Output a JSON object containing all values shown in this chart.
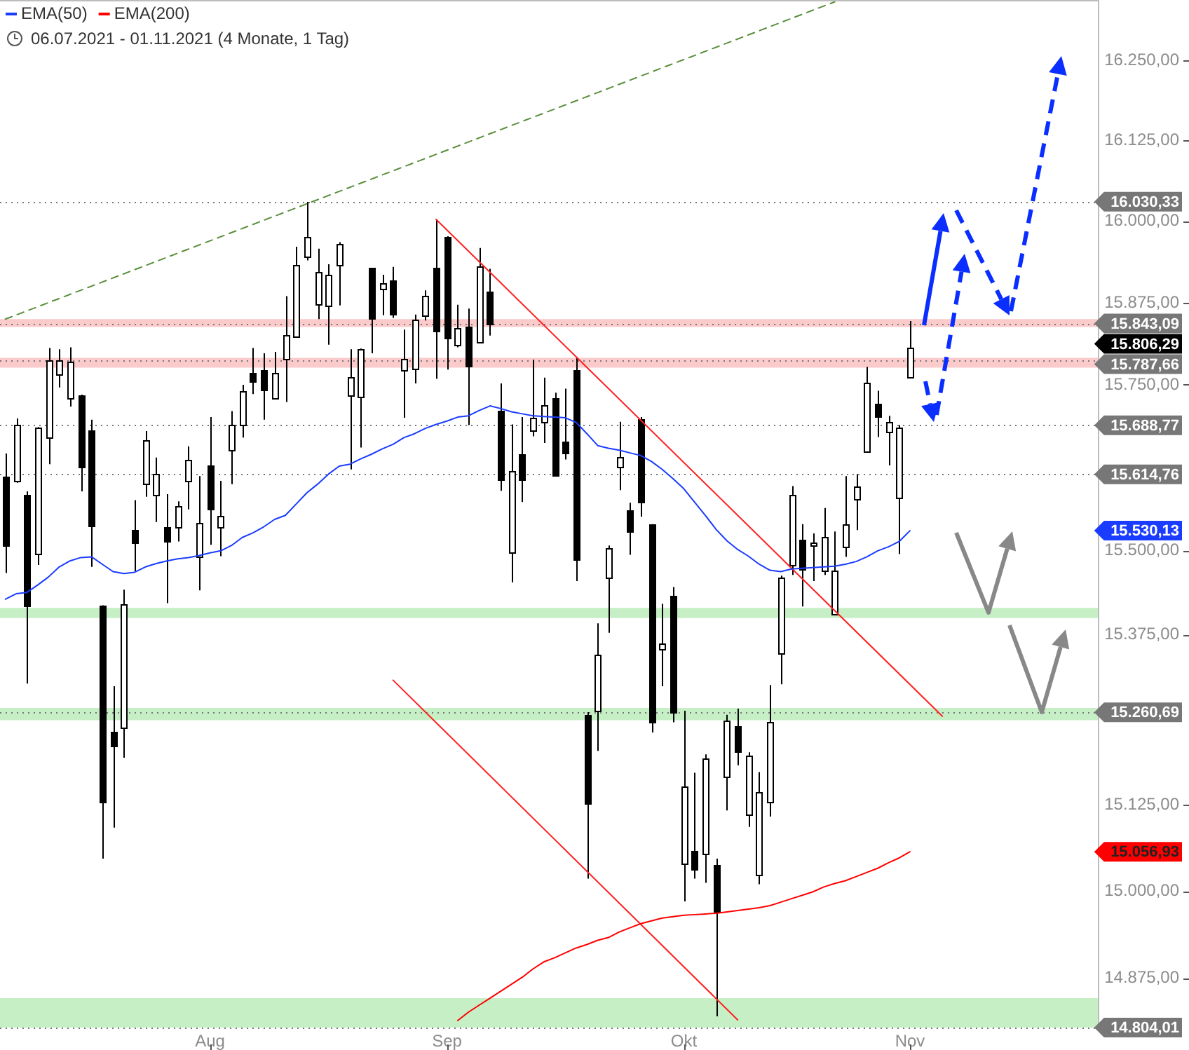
{
  "chart_data": {
    "type": "candlestick",
    "subtitle": "06.07.2021 - 01.11.2021 (4 Monate, 1 Tag)",
    "categories": [
      null,
      null,
      null,
      null,
      null,
      null,
      null,
      null,
      null,
      null,
      null,
      null,
      null,
      null,
      null,
      null,
      null,
      null,
      null,
      "Aug",
      null,
      null,
      null,
      null,
      null,
      null,
      null,
      null,
      null,
      null,
      null,
      null,
      null,
      null,
      null,
      null,
      null,
      null,
      null,
      null,
      null,
      "Sep",
      null,
      null,
      null,
      null,
      null,
      null,
      null,
      null,
      null,
      null,
      null,
      null,
      null,
      null,
      null,
      null,
      null,
      null,
      null,
      null,
      null,
      "Okt",
      null,
      null,
      null,
      null,
      null,
      null,
      null,
      null,
      null,
      null,
      null,
      null,
      null,
      null,
      null,
      null,
      null,
      null,
      null,
      null,
      "Nov",
      null,
      null,
      null,
      null,
      null,
      null,
      null,
      null,
      null,
      null,
      null,
      null,
      null,
      null,
      null,
      null,
      null
    ],
    "series": [
      {
        "color": "#000000",
        "ohlc": [
          [
            15612,
            15646,
            15467,
            15508
          ],
          [
            15605,
            15699,
            15602,
            15690
          ],
          [
            15583,
            15589,
            15303,
            15418
          ],
          [
            15497,
            15686,
            15479,
            15686
          ],
          [
            15672,
            15806,
            15630,
            15788
          ],
          [
            15767,
            15804,
            15746,
            15788
          ],
          [
            15730,
            15807,
            15717,
            15786
          ],
          [
            15735,
            15735,
            15589,
            15627
          ],
          [
            15680,
            15697,
            15476,
            15536
          ],
          [
            15419,
            15419,
            15047,
            15130
          ],
          [
            15233,
            15299,
            15092,
            15213
          ],
          [
            15238,
            15442,
            15194,
            15420
          ],
          [
            15531,
            15576,
            15469,
            15512
          ],
          [
            15601,
            15680,
            15581,
            15667
          ],
          [
            15584,
            15640,
            15543,
            15616
          ],
          [
            15536,
            15585,
            15422,
            15516
          ],
          [
            15536,
            15574,
            15514,
            15567
          ],
          [
            15605,
            15657,
            15562,
            15637
          ],
          [
            15492,
            15612,
            15441,
            15542
          ],
          [
            15629,
            15701,
            15509,
            15564
          ],
          [
            15536,
            15605,
            15492,
            15553
          ],
          [
            15651,
            15710,
            15600,
            15690
          ],
          [
            15690,
            15750,
            15670,
            15741
          ],
          [
            15769,
            15806,
            15736,
            15757
          ],
          [
            15772,
            15798,
            15697,
            15743
          ],
          [
            15730,
            15800,
            15730,
            15769
          ],
          [
            15789,
            15885,
            15724,
            15825
          ],
          [
            15825,
            15961,
            15822,
            15934
          ],
          [
            15945,
            16030,
            15940,
            15975
          ],
          [
            15874,
            15958,
            15850,
            15923
          ],
          [
            15870,
            15934,
            15811,
            15918
          ],
          [
            15932,
            15968,
            15871,
            15965
          ],
          [
            15735,
            15804,
            15622,
            15762
          ],
          [
            15732,
            15805,
            15655,
            15805
          ],
          [
            15928,
            15928,
            15798,
            15850
          ],
          [
            15895,
            15918,
            15856,
            15904
          ],
          [
            15910,
            15930,
            15852,
            15859
          ],
          [
            15771,
            15834,
            15700,
            15789
          ],
          [
            15775,
            15857,
            15752,
            15850
          ],
          [
            15855,
            15894,
            15848,
            15885
          ],
          [
            15928,
            16003,
            15759,
            15832
          ],
          [
            15977,
            15977,
            15773,
            15822
          ],
          [
            15811,
            15872,
            15807,
            15837
          ],
          [
            15839,
            15866,
            15689,
            15779
          ],
          [
            15814,
            15959,
            15814,
            15930
          ],
          [
            15893,
            15927,
            15825,
            15843
          ],
          [
            15711,
            15752,
            15590,
            15608
          ],
          [
            15497,
            15690,
            15453,
            15619
          ],
          [
            15646,
            15701,
            15573,
            15608
          ],
          [
            15680,
            15788,
            15672,
            15699
          ],
          [
            15694,
            15761,
            15662,
            15720
          ],
          [
            15729,
            15738,
            15612,
            15612
          ],
          [
            15665,
            15744,
            15637,
            15649
          ],
          [
            15772,
            15791,
            15455,
            15488
          ],
          [
            15257,
            15261,
            15018,
            15128
          ],
          [
            15263,
            15392,
            15204,
            15346
          ],
          [
            15460,
            15508,
            15378,
            15504
          ],
          [
            15627,
            15694,
            15591,
            15641
          ],
          [
            15560,
            15572,
            15494,
            15528
          ],
          [
            15697,
            15701,
            15551,
            15572
          ],
          [
            15540,
            15540,
            15231,
            15246
          ],
          [
            15354,
            15421,
            15299,
            15362
          ],
          [
            15432,
            15446,
            15246,
            15259
          ],
          [
            15040,
            15263,
            14985,
            15153
          ],
          [
            15059,
            15172,
            15018,
            15033
          ],
          [
            15054,
            15199,
            15012,
            15192
          ],
          [
            15037,
            15047,
            14820,
            14971
          ],
          [
            15166,
            15257,
            15117,
            15249
          ],
          [
            15240,
            15266,
            15183,
            15202
          ],
          [
            15112,
            15202,
            15093,
            15197
          ],
          [
            15024,
            15173,
            15010,
            15144
          ],
          [
            15129,
            15301,
            15108,
            15246
          ],
          [
            15347,
            15463,
            15302,
            15460
          ],
          [
            15479,
            15597,
            15464,
            15584
          ],
          [
            15517,
            15540,
            15417,
            15472
          ],
          [
            15508,
            15526,
            15455,
            15513
          ],
          [
            15471,
            15564,
            15464,
            15521
          ],
          [
            15406,
            15529,
            15406,
            15471
          ],
          [
            15507,
            15612,
            15491,
            15540
          ],
          [
            15579,
            15615,
            15531,
            15597
          ],
          [
            15650,
            15777,
            15650,
            15754
          ],
          [
            15722,
            15741,
            15671,
            15703
          ],
          [
            15680,
            15703,
            15628,
            15694
          ],
          [
            15579,
            15689,
            15495,
            15685
          ],
          [
            15762,
            15847,
            15761,
            15806.29
          ],
          null,
          null,
          null,
          null,
          null,
          null,
          null,
          null,
          null,
          null,
          null,
          null,
          null,
          null,
          null,
          null,
          null
        ]
      },
      {
        "type": "line",
        "name": "EMA(50)",
        "color": "#1a3cff",
        "values": [
          15428,
          15436,
          15438,
          15449,
          15461,
          15476,
          15485,
          15490,
          15491,
          15480,
          15469,
          15466,
          15468,
          15476,
          15481,
          15485,
          15488,
          15490,
          15493,
          15497,
          15500,
          15508,
          15520,
          15527,
          15536,
          15547,
          15553,
          15570,
          15587,
          15600,
          15615,
          15627,
          15630,
          15638,
          15645,
          15653,
          15660,
          15670,
          15676,
          15684,
          15690,
          15695,
          15701,
          15703,
          15711,
          15718,
          15714,
          15709,
          15706,
          15703,
          15702,
          15701,
          15700,
          15693,
          15676,
          15658,
          15654,
          15651,
          15647,
          15643,
          15634,
          15622,
          15608,
          15593,
          15573,
          15553,
          15532,
          15515,
          15502,
          15492,
          15480,
          15471,
          15469,
          15473,
          15474,
          15475,
          15476,
          15477,
          15480,
          15484,
          15491,
          15500,
          15506,
          15514,
          15530.13,
          null,
          null,
          null,
          null,
          null,
          null,
          null,
          null,
          null,
          null,
          null,
          null,
          null,
          null,
          null,
          null,
          null
        ]
      },
      {
        "type": "line",
        "name": "EMA(200)",
        "color": "#ff0000",
        "values": [
          null,
          null,
          null,
          null,
          null,
          null,
          null,
          null,
          null,
          null,
          null,
          null,
          null,
          null,
          null,
          null,
          null,
          null,
          null,
          null,
          null,
          null,
          null,
          null,
          null,
          null,
          null,
          null,
          null,
          null,
          null,
          null,
          null,
          null,
          null,
          null,
          null,
          null,
          null,
          null,
          null,
          null,
          14814,
          14826,
          14836,
          14846,
          14856,
          14866,
          14876,
          14888,
          14898,
          14904,
          14911,
          14918,
          14923,
          14929,
          14933,
          14941,
          14947,
          14953,
          14957,
          14961,
          14963,
          14965,
          14966,
          14967,
          14968,
          14970,
          14972,
          14974,
          14976,
          14979,
          14984,
          14989,
          14994,
          14999,
          15006,
          15011,
          15015,
          15021,
          15027,
          15033,
          15041,
          15048,
          15056.93,
          null,
          null,
          null,
          null,
          null,
          null,
          null,
          null,
          null,
          null,
          null,
          null,
          null,
          null,
          null,
          null,
          null
        ]
      },
      {
        "type": "line",
        "color": "#5a8f3c",
        "line_style": "dashed",
        "values": [
          15850,
          null,
          null,
          null,
          null,
          null,
          null,
          null,
          null,
          null,
          null,
          null,
          null,
          null,
          null,
          null,
          null,
          null,
          null,
          null,
          null,
          null,
          null,
          null,
          null,
          null,
          null,
          null,
          null,
          null,
          null,
          null,
          null,
          null,
          null,
          null,
          null,
          null,
          null,
          null,
          null,
          null,
          null,
          null,
          null,
          null,
          null,
          null,
          null,
          null,
          null,
          null,
          null,
          null,
          null,
          null,
          null,
          null,
          null,
          null,
          null,
          null,
          null,
          null,
          null,
          null,
          null,
          null,
          null,
          null,
          null,
          null,
          null,
          null,
          null,
          null,
          null,
          16342,
          null,
          null,
          null,
          null,
          null,
          null,
          null,
          null,
          null,
          null,
          null,
          null,
          null,
          null,
          null,
          null,
          null,
          null,
          null,
          null,
          null,
          null,
          null,
          null
        ]
      },
      {
        "type": "line",
        "color": "#ff2020",
        "values": [
          null,
          null,
          null,
          null,
          null,
          null,
          null,
          null,
          null,
          null,
          null,
          null,
          null,
          null,
          null,
          null,
          null,
          null,
          null,
          null,
          null,
          null,
          null,
          null,
          null,
          null,
          null,
          null,
          null,
          null,
          null,
          null,
          null,
          null,
          null,
          null,
          null,
          null,
          null,
          null,
          16003,
          null,
          null,
          null,
          null,
          null,
          null,
          null,
          null,
          null,
          null,
          null,
          null,
          null,
          null,
          null,
          null,
          null,
          null,
          null,
          null,
          null,
          null,
          null,
          null,
          null,
          null,
          null,
          null,
          null,
          null,
          null,
          null,
          null,
          null,
          null,
          null,
          null,
          null,
          null,
          null,
          null,
          null,
          null,
          null,
          null,
          null,
          15255,
          null,
          null,
          null,
          null,
          null,
          null,
          null,
          null,
          null,
          null,
          null,
          null,
          null,
          null
        ]
      },
      {
        "type": "line",
        "color": "#ff2020",
        "values": [
          null,
          null,
          null,
          null,
          null,
          null,
          null,
          null,
          null,
          null,
          null,
          null,
          null,
          null,
          null,
          null,
          null,
          null,
          null,
          null,
          null,
          null,
          null,
          null,
          null,
          null,
          null,
          null,
          null,
          null,
          null,
          null,
          null,
          null,
          null,
          null,
          15308,
          null,
          null,
          null,
          null,
          null,
          null,
          null,
          null,
          null,
          null,
          null,
          null,
          null,
          null,
          null,
          null,
          null,
          null,
          null,
          null,
          null,
          null,
          null,
          null,
          null,
          null,
          null,
          null,
          null,
          null,
          null,
          14815,
          null,
          null,
          null,
          null,
          null,
          null,
          null,
          null,
          null,
          null,
          null,
          null,
          null,
          null,
          null,
          null,
          null,
          null,
          null,
          null,
          null,
          null,
          null,
          null,
          null,
          null,
          null,
          null,
          null,
          null,
          null,
          null,
          null
        ]
      }
    ],
    "ylim": [
      14800,
      16345
    ],
    "log": true,
    "yticks": [
      {
        "value": 16250,
        "label": "16.250,00"
      },
      {
        "value": 16125,
        "label": "16.125,00"
      },
      {
        "value": 16000,
        "label": "16.000,00"
      },
      {
        "value": 15875,
        "label": "15.875,00"
      },
      {
        "value": 15750,
        "label": "15.750,00"
      },
      {
        "value": 15500,
        "label": "15.500,00"
      },
      {
        "value": 15375,
        "label": "15.375,00"
      },
      {
        "value": 15125,
        "label": "15.125,00"
      },
      {
        "value": 15000,
        "label": "15.000,00"
      },
      {
        "value": 14875,
        "label": "14.875,00"
      }
    ],
    "legend": "top left",
    "annotations": [
      "15.806,29",
      "15.530,13",
      "15.056,93"
    ],
    "bands": [
      {
        "axis": "y",
        "from": 15838,
        "to": 15850,
        "color": "#fbcaca"
      },
      {
        "axis": "y",
        "from": 15776,
        "to": 15791,
        "color": "#fbcaca"
      },
      {
        "axis": "y",
        "from": 15400,
        "to": 15415,
        "color": "#c6efc6"
      },
      {
        "axis": "y",
        "from": 15249,
        "to": 15267,
        "color": "#c6efc6"
      },
      {
        "axis": "y",
        "from": 14804,
        "to": 14846,
        "color": "#c6efc6"
      }
    ],
    "ref_lines": [
      {
        "axis": "y",
        "value": 16030.33,
        "label": "16.030,33",
        "color": "#777777",
        "line_style": "dotted"
      },
      {
        "axis": "y",
        "value": 15843.09,
        "label": "15.843,09",
        "color": "#777777",
        "line_style": "dotted"
      },
      {
        "axis": "y",
        "value": 15787.66,
        "label": "15.787,66",
        "color": "#777777",
        "line_style": "dotted"
      },
      {
        "axis": "y",
        "value": 15688.77,
        "label": "15.688,77",
        "color": "#777777",
        "line_style": "dotted"
      },
      {
        "axis": "y",
        "value": 15614.76,
        "label": "15.614,76",
        "color": "#777777",
        "line_style": "dotted"
      },
      {
        "axis": "y",
        "value": 15260.69,
        "label": "15.260,69",
        "color": "#777777",
        "line_style": "dotted"
      },
      {
        "axis": "y",
        "value": 14804.01,
        "label": "14.804,01",
        "color": "#777777",
        "line_style": "dotted"
      }
    ]
  }
}
